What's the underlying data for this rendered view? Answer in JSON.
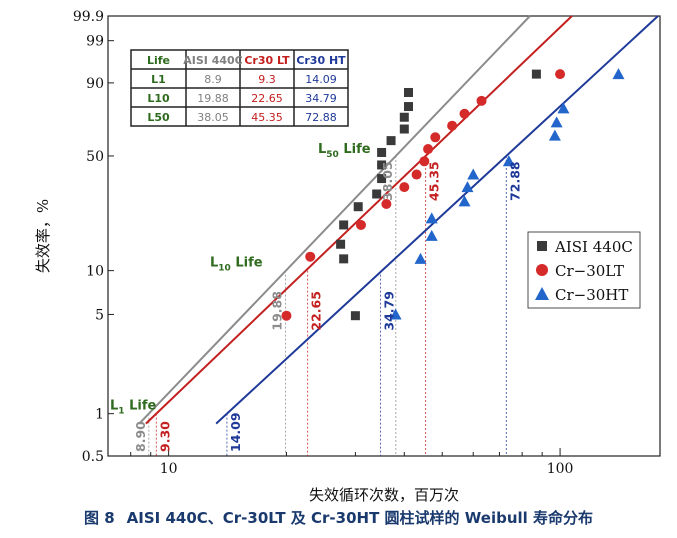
{
  "caption": {
    "figure_no": "图 8",
    "text": "AISI 440C、Cr-30LT 及 Cr-30HT 圆柱试样的 Weibull 寿命分布"
  },
  "chart_data": {
    "type": "scatter",
    "xlabel": "失效循环次数，百万次",
    "ylabel": "失效率，%",
    "x_scale": "log",
    "y_scale": "weibull",
    "xlim": [
      7,
      180
    ],
    "ylim": [
      0.5,
      99.9
    ],
    "x_ticks": [
      10,
      100
    ],
    "x_tick_labels": [
      "10",
      "100"
    ],
    "y_ticks": [
      0.5,
      1,
      5,
      10,
      50,
      90,
      99,
      99.9
    ],
    "y_tick_labels": [
      "0.5",
      "1",
      "5",
      "10",
      "50",
      "90",
      "99",
      "99.9"
    ],
    "grid": false,
    "legend_position": "right",
    "series": [
      {
        "name": "AISI 440C",
        "color": "#3a3a3a",
        "line_color": "#8c8c8c",
        "marker": "square",
        "points": [
          {
            "x": 28,
            "y": 12
          },
          {
            "x": 30,
            "y": 4.9
          },
          {
            "x": 27.5,
            "y": 15
          },
          {
            "x": 28,
            "y": 20
          },
          {
            "x": 30.5,
            "y": 26
          },
          {
            "x": 34,
            "y": 31
          },
          {
            "x": 35,
            "y": 38
          },
          {
            "x": 35,
            "y": 45
          },
          {
            "x": 35,
            "y": 52
          },
          {
            "x": 37,
            "y": 59
          },
          {
            "x": 40,
            "y": 66
          },
          {
            "x": 40,
            "y": 73
          },
          {
            "x": 41,
            "y": 79
          },
          {
            "x": 41,
            "y": 86
          },
          {
            "x": 87,
            "y": 93
          }
        ],
        "fit_points": [
          {
            "x": 8.9,
            "y": 1
          },
          {
            "x": 38.05,
            "y": 50
          }
        ]
      },
      {
        "name": "Cr−30LT",
        "color": "#d42a2a",
        "line_color": "#c42020",
        "marker": "circle",
        "points": [
          {
            "x": 20,
            "y": 4.9
          },
          {
            "x": 23,
            "y": 12.4
          },
          {
            "x": 31,
            "y": 20
          },
          {
            "x": 36,
            "y": 27
          },
          {
            "x": 40,
            "y": 34
          },
          {
            "x": 43,
            "y": 40
          },
          {
            "x": 45,
            "y": 47
          },
          {
            "x": 46,
            "y": 54
          },
          {
            "x": 48,
            "y": 61
          },
          {
            "x": 53,
            "y": 68
          },
          {
            "x": 57,
            "y": 75
          },
          {
            "x": 63,
            "y": 82
          },
          {
            "x": 100,
            "y": 93
          }
        ],
        "fit_points": [
          {
            "x": 9.3,
            "y": 1
          },
          {
            "x": 45.35,
            "y": 50
          }
        ]
      },
      {
        "name": "Cr−30HT",
        "color": "#2266cc",
        "line_color": "#1f3a99",
        "marker": "triangle",
        "points": [
          {
            "x": 38,
            "y": 5
          },
          {
            "x": 44,
            "y": 12
          },
          {
            "x": 47,
            "y": 17
          },
          {
            "x": 47,
            "y": 22
          },
          {
            "x": 57,
            "y": 28
          },
          {
            "x": 58,
            "y": 34
          },
          {
            "x": 60,
            "y": 40
          },
          {
            "x": 74,
            "y": 47
          },
          {
            "x": 97,
            "y": 62
          },
          {
            "x": 98,
            "y": 70
          },
          {
            "x": 102,
            "y": 78
          },
          {
            "x": 141,
            "y": 93
          }
        ],
        "fit_points": [
          {
            "x": 14.09,
            "y": 1
          },
          {
            "x": 72.88,
            "y": 50
          }
        ]
      }
    ],
    "life_table": {
      "headers": [
        "Life",
        "AISI 440C",
        "Cr30 LT",
        "Cr30 HT"
      ],
      "rows": [
        {
          "label": "L1",
          "values": [
            "8.9",
            "9.3",
            "14.09"
          ]
        },
        {
          "label": "L10",
          "values": [
            "19.88",
            "22.65",
            "34.79"
          ]
        },
        {
          "label": "L50",
          "values": [
            "38.05",
            "45.35",
            "72.88"
          ]
        }
      ]
    },
    "annotations": {
      "life_labels": [
        {
          "main": "L",
          "sub": "1",
          "rest": " Life",
          "y": 1
        },
        {
          "main": "L",
          "sub": "10",
          "rest": " Life",
          "y": 10
        },
        {
          "main": "L",
          "sub": "50",
          "rest": " Life",
          "y": 50
        }
      ],
      "value_labels": [
        {
          "text": "8.90",
          "x": 8.9,
          "y": 1,
          "series": 0
        },
        {
          "text": "9.30",
          "x": 9.3,
          "y": 1,
          "series": 1
        },
        {
          "text": "14.09",
          "x": 14.09,
          "y": 1,
          "series": 2
        },
        {
          "text": "19.88",
          "x": 19.88,
          "y": 10,
          "series": 0
        },
        {
          "text": "22.65",
          "x": 22.65,
          "y": 10,
          "series": 1
        },
        {
          "text": "34.79",
          "x": 34.79,
          "y": 10,
          "series": 2
        },
        {
          "text": "38.05",
          "x": 38.05,
          "y": 50,
          "series": 0
        },
        {
          "text": "45.35",
          "x": 45.35,
          "y": 50,
          "series": 1
        },
        {
          "text": "72.88",
          "x": 72.88,
          "y": 50,
          "series": 2
        }
      ]
    }
  }
}
